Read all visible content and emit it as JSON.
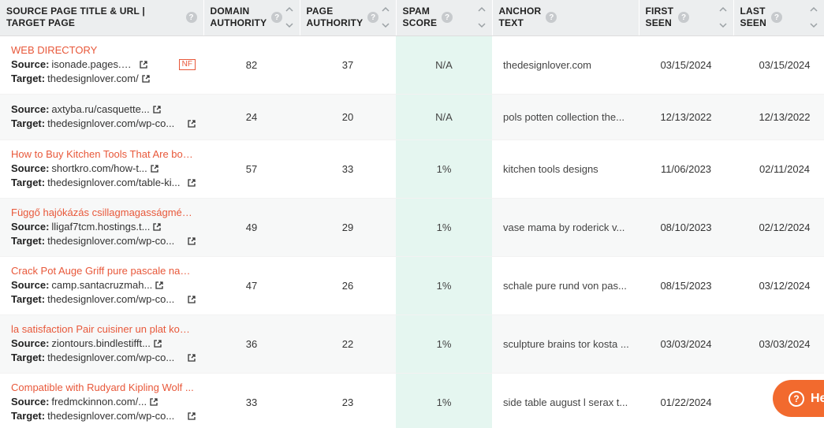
{
  "columns": [
    {
      "label": "SOURCE PAGE TITLE & URL | TARGET PAGE"
    },
    {
      "label1": "DOMAIN",
      "label2": "AUTHORITY"
    },
    {
      "label1": "PAGE",
      "label2": "AUTHORITY"
    },
    {
      "label1": "SPAM",
      "label2": "SCORE"
    },
    {
      "label1": "ANCHOR",
      "label2": "TEXT"
    },
    {
      "label1": "FIRST",
      "label2": "SEEN"
    },
    {
      "label1": "LAST",
      "label2": "SEEN"
    }
  ],
  "source_label": "Source:",
  "target_label": "Target:",
  "nf_badge": "NF",
  "rows": [
    {
      "title": "WEB DIRECTORY",
      "source": "isonade.pages.dev/...",
      "target": "thedesignlover.com/",
      "da": "82",
      "pa": "37",
      "spam": "N/A",
      "anchor": "thedesignlover.com",
      "first": "03/15/2024",
      "last": "03/15/2024"
    },
    {
      "title": "",
      "source": "axtyba.ru/casquette...",
      "target": "thedesignlover.com/wp-co...",
      "da": "24",
      "pa": "20",
      "spam": "N/A",
      "anchor": "pols potten collection the...",
      "first": "12/13/2022",
      "last": "12/13/2022"
    },
    {
      "title": "How to Buy Kitchen Tools That Are bot...",
      "source": "shortkro.com/how-t...",
      "target": "thedesignlover.com/table-ki...",
      "da": "57",
      "pa": "33",
      "spam": "1%",
      "anchor": "kitchen tools designs",
      "first": "11/06/2023",
      "last": "02/11/2024"
    },
    {
      "title": "Függő hajókázás csillagmagasságmérő...",
      "source": "lligaf7tcm.hostings.t...",
      "target": "thedesignlover.com/wp-co...",
      "da": "49",
      "pa": "29",
      "spam": "1%",
      "anchor": "vase mama by roderick v...",
      "first": "08/10/2023",
      "last": "02/12/2024"
    },
    {
      "title": "Crack Pot Auge Griff pure pascale naes...",
      "source": "camp.santacruzmah...",
      "target": "thedesignlover.com/wp-co...",
      "da": "47",
      "pa": "26",
      "spam": "1%",
      "anchor": "schale pure rund von pas...",
      "first": "08/15/2023",
      "last": "03/12/2024"
    },
    {
      "title": "la satisfaction Pair cuisiner un plat kosta...",
      "source": "ziontours.bindlestifft...",
      "target": "thedesignlover.com/wp-co...",
      "da": "36",
      "pa": "22",
      "spam": "1%",
      "anchor": "sculpture brains tor kosta ...",
      "first": "03/03/2024",
      "last": "03/03/2024"
    },
    {
      "title": "Compatible with Rudyard Kipling Wolf ...",
      "source": "fredmckinnon.com/...",
      "target": "thedesignlover.com/wp-co...",
      "da": "33",
      "pa": "23",
      "spam": "1%",
      "anchor": "side table august l serax t...",
      "first": "01/22/2024",
      "last": "01/2"
    }
  ],
  "help": {
    "label": "He"
  }
}
